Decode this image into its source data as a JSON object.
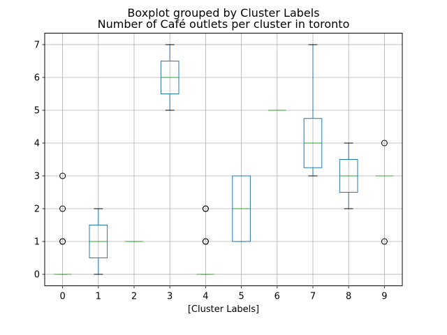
{
  "chart_data": {
    "type": "boxplot",
    "suptitle": "Boxplot grouped by Cluster Labels",
    "title": "Number of Café outlets per cluster in toronto",
    "xlabel": "[Cluster Labels]",
    "ylabel": "",
    "ylim": [
      -0.35,
      7.35
    ],
    "yticks": [
      0,
      1,
      2,
      3,
      4,
      5,
      6,
      7
    ],
    "grid": true,
    "colors": {
      "box": "#1f77b4",
      "median": "#2ca02c",
      "whisker": "#1f77b4",
      "cap": "#000000",
      "flier": "#000000",
      "grid": "#b0b0b0"
    },
    "categories": [
      "0",
      "1",
      "2",
      "3",
      "4",
      "5",
      "6",
      "7",
      "8",
      "9"
    ],
    "boxes": [
      {
        "label": "0",
        "whislo": 0,
        "q1": 0,
        "med": 0,
        "q3": 0,
        "whishi": 0,
        "fliers": [
          1,
          1,
          2,
          3
        ]
      },
      {
        "label": "1",
        "whislo": 0,
        "q1": 0.5,
        "med": 1,
        "q3": 1.5,
        "whishi": 2,
        "fliers": []
      },
      {
        "label": "2",
        "whislo": 1,
        "q1": 1,
        "med": 1,
        "q3": 1,
        "whishi": 1,
        "fliers": []
      },
      {
        "label": "3",
        "whislo": 5,
        "q1": 5.5,
        "med": 6,
        "q3": 6.5,
        "whishi": 7,
        "fliers": []
      },
      {
        "label": "4",
        "whislo": 0,
        "q1": 0,
        "med": 0,
        "q3": 0,
        "whishi": 0,
        "fliers": [
          1,
          1,
          2,
          2
        ]
      },
      {
        "label": "5",
        "whislo": 1,
        "q1": 1,
        "med": 2,
        "q3": 3,
        "whishi": 3,
        "fliers": []
      },
      {
        "label": "6",
        "whislo": 5,
        "q1": 5,
        "med": 5,
        "q3": 5,
        "whishi": 5,
        "fliers": []
      },
      {
        "label": "7",
        "whislo": 3,
        "q1": 3.25,
        "med": 4,
        "q3": 4.75,
        "whishi": 7,
        "fliers": []
      },
      {
        "label": "8",
        "whislo": 2,
        "q1": 2.5,
        "med": 3,
        "q3": 3.5,
        "whishi": 4,
        "fliers": []
      },
      {
        "label": "9",
        "whislo": 3,
        "q1": 3,
        "med": 3,
        "q3": 3,
        "whishi": 3,
        "fliers": [
          1,
          4
        ]
      }
    ]
  }
}
